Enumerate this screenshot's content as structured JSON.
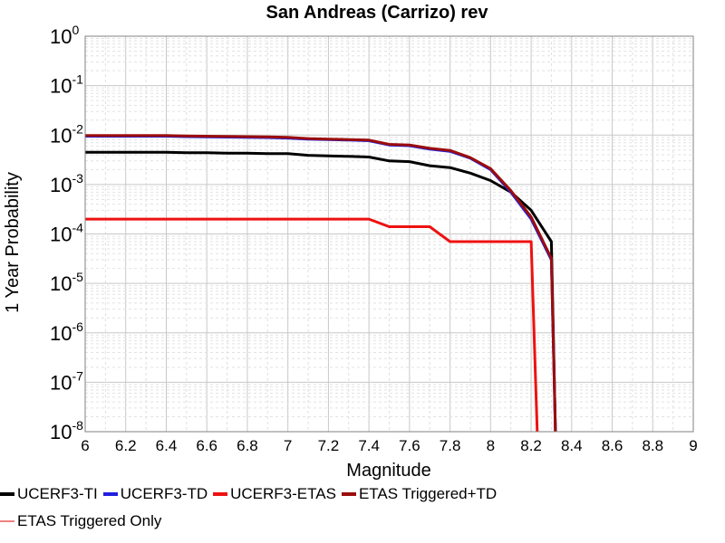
{
  "chart_data": {
    "type": "line",
    "title": "San Andreas (Carrizo) rev",
    "xlabel": "Magnitude",
    "ylabel": "1 Year Probability",
    "xlim": [
      6,
      9
    ],
    "ylim": [
      1e-08,
      1
    ],
    "y_scale": "log",
    "x_ticks": [
      "6",
      "6.2",
      "6.4",
      "6.6",
      "6.8",
      "7",
      "7.2",
      "7.4",
      "7.6",
      "7.8",
      "8",
      "8.2",
      "8.4",
      "8.6",
      "8.8",
      "9"
    ],
    "y_ticks": [
      {
        "base": "10",
        "exp": "0"
      },
      {
        "base": "10",
        "exp": "-1"
      },
      {
        "base": "10",
        "exp": "-2"
      },
      {
        "base": "10",
        "exp": "-3"
      },
      {
        "base": "10",
        "exp": "-4"
      },
      {
        "base": "10",
        "exp": "-5"
      },
      {
        "base": "10",
        "exp": "-6"
      },
      {
        "base": "10",
        "exp": "-7"
      },
      {
        "base": "10",
        "exp": "-8"
      }
    ],
    "grid": true,
    "legend_position": "bottom",
    "series": [
      {
        "name": "UCERF3-TI",
        "color": "#000000",
        "width": 3,
        "points": [
          [
            6.0,
            0.0045
          ],
          [
            6.1,
            0.0045
          ],
          [
            6.2,
            0.0045
          ],
          [
            6.3,
            0.0045
          ],
          [
            6.4,
            0.0045
          ],
          [
            6.5,
            0.0044
          ],
          [
            6.6,
            0.0044
          ],
          [
            6.7,
            0.0043
          ],
          [
            6.8,
            0.0043
          ],
          [
            6.9,
            0.0042
          ],
          [
            7.0,
            0.0042
          ],
          [
            7.1,
            0.0039
          ],
          [
            7.2,
            0.0038
          ],
          [
            7.3,
            0.0037
          ],
          [
            7.4,
            0.0036
          ],
          [
            7.5,
            0.003
          ],
          [
            7.6,
            0.0029
          ],
          [
            7.7,
            0.0024
          ],
          [
            7.8,
            0.0022
          ],
          [
            7.9,
            0.0017
          ],
          [
            8.0,
            0.0012
          ],
          [
            8.1,
            0.0007
          ],
          [
            8.2,
            0.0003
          ],
          [
            8.3,
            7e-05
          ],
          [
            8.32,
            1e-08
          ]
        ]
      },
      {
        "name": "UCERF3-TD",
        "color": "#1f1fe0",
        "width": 3,
        "points": [
          [
            6.0,
            0.0095
          ],
          [
            6.1,
            0.0095
          ],
          [
            6.2,
            0.0095
          ],
          [
            6.3,
            0.0095
          ],
          [
            6.4,
            0.0095
          ],
          [
            6.5,
            0.0093
          ],
          [
            6.6,
            0.0092
          ],
          [
            6.7,
            0.0091
          ],
          [
            6.8,
            0.009
          ],
          [
            6.9,
            0.0089
          ],
          [
            7.0,
            0.0087
          ],
          [
            7.1,
            0.0083
          ],
          [
            7.2,
            0.0081
          ],
          [
            7.3,
            0.0079
          ],
          [
            7.4,
            0.0077
          ],
          [
            7.5,
            0.0063
          ],
          [
            7.6,
            0.0061
          ],
          [
            7.7,
            0.0052
          ],
          [
            7.8,
            0.0047
          ],
          [
            7.9,
            0.0034
          ],
          [
            8.0,
            0.002
          ],
          [
            8.1,
            0.0007
          ],
          [
            8.2,
            0.0002
          ],
          [
            8.3,
            3e-05
          ],
          [
            8.32,
            1e-08
          ]
        ]
      },
      {
        "name": "UCERF3-ETAS",
        "color": "#ee1111",
        "width": 3,
        "points": [
          [
            6.0,
            0.0002
          ],
          [
            7.4,
            0.0002
          ],
          [
            7.5,
            0.00014
          ],
          [
            7.7,
            0.00014
          ],
          [
            7.8,
            7e-05
          ],
          [
            8.2,
            7e-05
          ],
          [
            8.2,
            7e-05
          ],
          [
            8.23,
            1e-08
          ]
        ]
      },
      {
        "name": "ETAS Triggered+TD",
        "color": "#9b0d0d",
        "width": 3,
        "points": [
          [
            6.0,
            0.0098
          ],
          [
            6.1,
            0.0098
          ],
          [
            6.2,
            0.0098
          ],
          [
            6.3,
            0.0098
          ],
          [
            6.4,
            0.0098
          ],
          [
            6.5,
            0.0096
          ],
          [
            6.6,
            0.0095
          ],
          [
            6.7,
            0.0094
          ],
          [
            6.8,
            0.0093
          ],
          [
            6.9,
            0.0092
          ],
          [
            7.0,
            0.009
          ],
          [
            7.1,
            0.0085
          ],
          [
            7.2,
            0.0083
          ],
          [
            7.3,
            0.0081
          ],
          [
            7.4,
            0.0079
          ],
          [
            7.5,
            0.0065
          ],
          [
            7.6,
            0.0063
          ],
          [
            7.7,
            0.0054
          ],
          [
            7.8,
            0.0049
          ],
          [
            7.9,
            0.0035
          ],
          [
            8.0,
            0.0021
          ],
          [
            8.1,
            0.00075
          ],
          [
            8.2,
            0.00022
          ],
          [
            8.3,
            3.2e-05
          ],
          [
            8.32,
            1e-08
          ]
        ]
      },
      {
        "name": "ETAS Triggered Only",
        "color": "#f08080",
        "width": 1.5,
        "points": []
      }
    ]
  }
}
